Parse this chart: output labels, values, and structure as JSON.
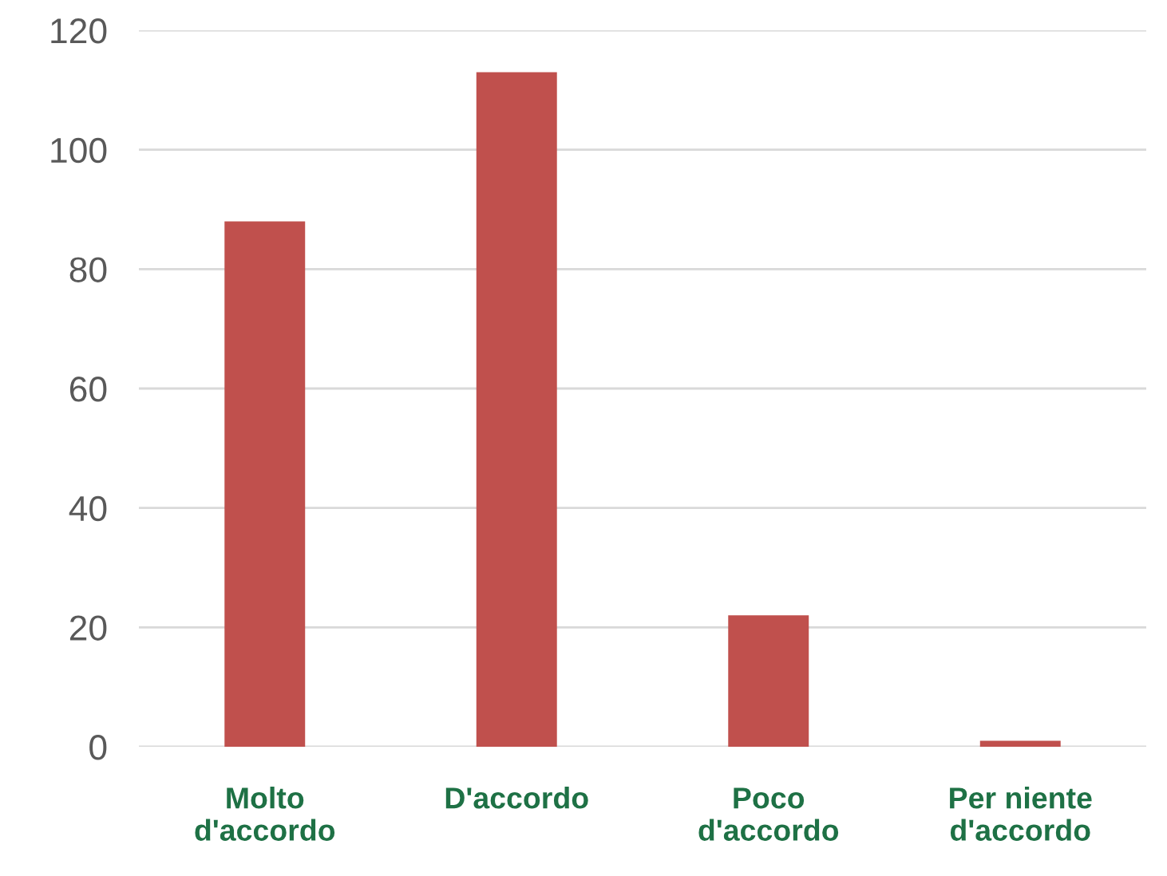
{
  "chart_data": {
    "type": "bar",
    "categories": [
      "Molto\nd'accordo",
      "D'accordo",
      "Poco\nd'accordo",
      "Per niente\nd'accordo"
    ],
    "values": [
      88,
      113,
      22,
      1
    ],
    "color": "#c0504d",
    "ylim": [
      0,
      120
    ],
    "yticks": [
      0,
      20,
      40,
      60,
      80,
      100,
      120
    ],
    "grid": "y",
    "legend": false
  }
}
